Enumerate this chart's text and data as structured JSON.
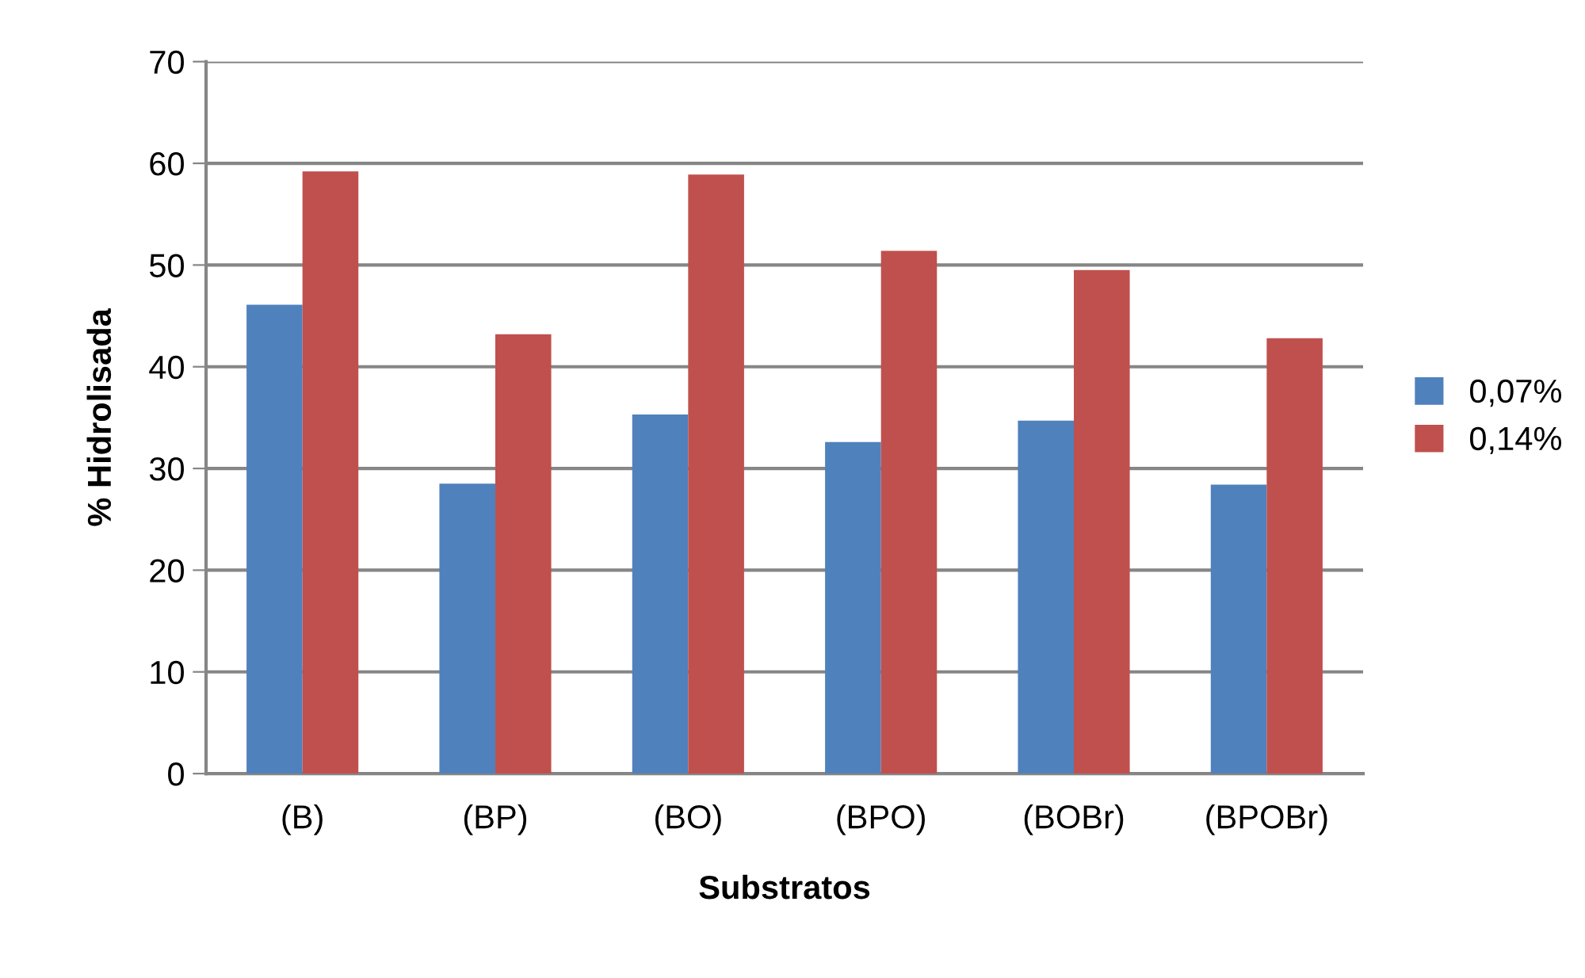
{
  "chart_data": {
    "type": "bar",
    "xlabel": "Substratos",
    "ylabel": "% Hidrolisada",
    "categories": [
      "(B)",
      "(BP)",
      "(BO)",
      "(BPO)",
      "(BOBr)",
      "(BPOBr)"
    ],
    "series": [
      {
        "name": "0,07%",
        "color": "#4f81bd",
        "values": [
          46.1,
          28.5,
          35.3,
          32.6,
          34.7,
          28.4
        ]
      },
      {
        "name": "0,14%",
        "color": "#c0504d",
        "values": [
          59.2,
          43.2,
          58.9,
          51.4,
          49.5,
          42.8
        ]
      }
    ],
    "ylim": [
      0,
      70
    ],
    "yticks": [
      0,
      10,
      20,
      30,
      40,
      50,
      60,
      70
    ],
    "grid": "y",
    "legend": "right"
  }
}
